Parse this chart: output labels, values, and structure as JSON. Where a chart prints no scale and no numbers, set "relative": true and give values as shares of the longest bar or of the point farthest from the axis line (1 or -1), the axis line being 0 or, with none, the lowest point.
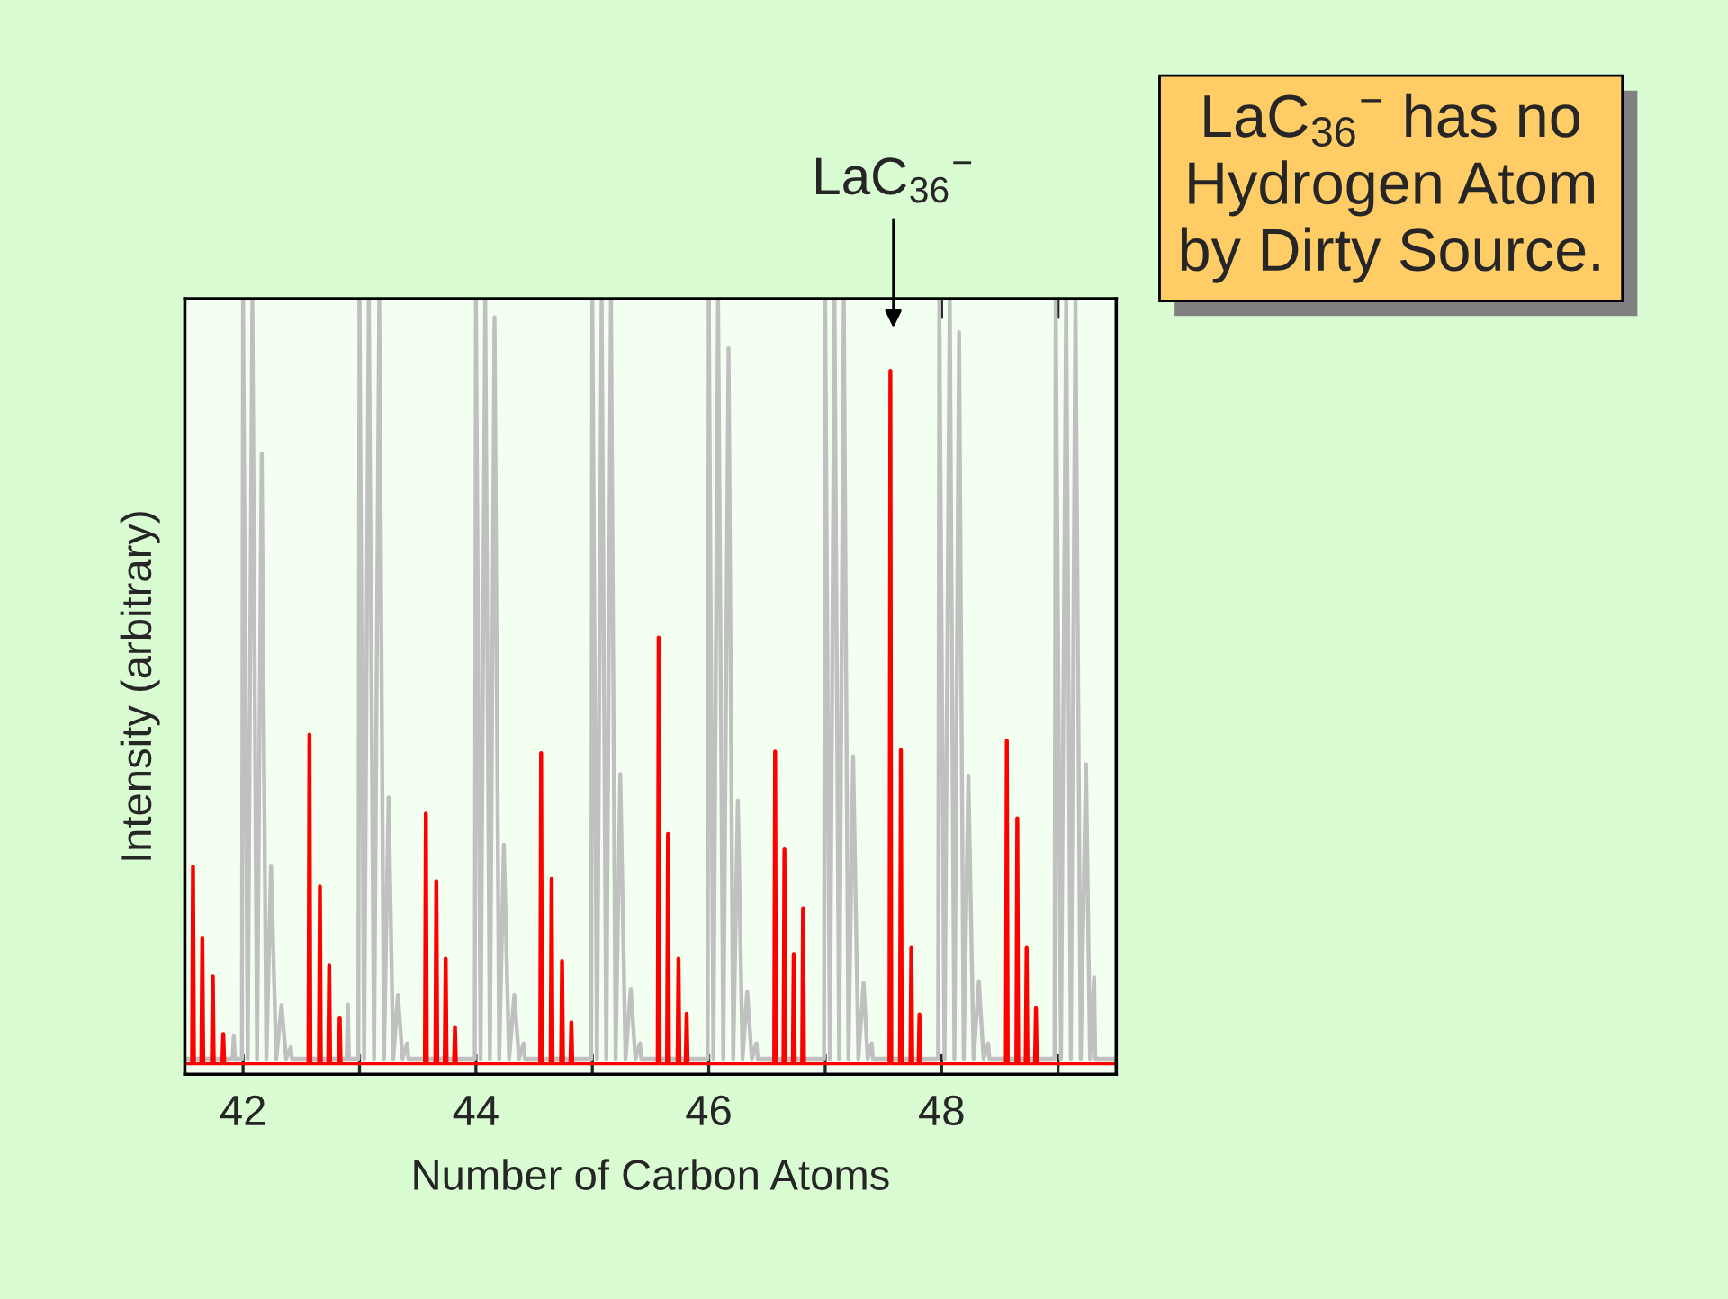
{
  "chart_data": {
    "type": "line",
    "relative": true,
    "xlabel": "Number of Carbon Atoms",
    "ylabel": "Intensity (arbitrary)",
    "xlim": [
      41.5,
      49.5
    ],
    "xticks": [
      42,
      {
        "value": 43,
        "label": null
      },
      44,
      {
        "value": 45,
        "label": null
      },
      46,
      {
        "value": 47,
        "label": null
      },
      48,
      {
        "value": 49,
        "label": null
      }
    ],
    "tick_labels": "x",
    "annotations": [
      "LaC$_{36}$$^{−}$",
      "LaC$_{36}$$^{−}$ has no\nHydrogen Atom\nby Dirty Source."
    ],
    "series": [
      {
        "color": "#c0c0c0",
        "x": [
          41.5,
          41.91,
          41.92,
          41.93,
          41.99,
          42.0,
          42.04,
          42.08,
          42.12,
          42.16,
          42.2,
          42.24,
          42.285,
          42.33,
          42.37,
          42.41,
          42.42,
          42.89,
          42.9,
          42.91,
          42.99,
          43.0,
          43.04,
          43.08,
          43.125,
          43.17,
          43.21,
          43.25,
          43.29,
          43.33,
          43.37,
          43.41,
          43.42,
          43.99,
          44.0,
          44.04,
          44.08,
          44.12,
          44.16,
          44.2,
          44.24,
          44.285,
          44.33,
          44.37,
          44.41,
          44.42,
          44.99,
          45.0,
          45.04,
          45.08,
          45.12,
          45.16,
          45.2,
          45.24,
          45.285,
          45.33,
          45.37,
          45.41,
          45.42,
          45.99,
          46.0,
          46.04,
          46.08,
          46.125,
          46.17,
          46.21,
          46.25,
          46.29,
          46.33,
          46.37,
          46.41,
          46.42,
          46.99,
          47.0,
          47.04,
          47.08,
          47.12,
          47.16,
          47.2,
          47.24,
          47.285,
          47.33,
          47.365,
          47.4,
          47.41,
          47.97,
          47.98,
          48.025,
          48.07,
          48.11,
          48.15,
          48.19,
          48.23,
          48.275,
          48.32,
          48.36,
          48.4,
          48.41,
          48.97,
          48.98,
          49.025,
          49.07,
          49.11,
          49.15,
          49.195,
          49.24,
          49.275,
          49.31,
          49.32,
          49.5
        ],
        "values": [
          0.02,
          0.02,
          0.05,
          0.02,
          0.02,
          1,
          0.02,
          1,
          0.02,
          0.8,
          0.02,
          0.269,
          0.02,
          0.089,
          0.02,
          0.035,
          0.02,
          0.02,
          0.09,
          0.02,
          0.02,
          1,
          0.02,
          1,
          0.02,
          1,
          0.02,
          0.357,
          0.02,
          0.102,
          0.02,
          0.04,
          0.02,
          0.02,
          1,
          0.02,
          1,
          0.02,
          0.976,
          0.02,
          0.296,
          0.02,
          0.102,
          0.02,
          0.04,
          0.02,
          0.02,
          1,
          0.02,
          1,
          0.02,
          1,
          0.02,
          0.387,
          0.02,
          0.11,
          0.02,
          0.04,
          0.02,
          0.02,
          1,
          0.02,
          1,
          0.02,
          0.936,
          0.02,
          0.353,
          0.02,
          0.107,
          0.02,
          0.04,
          0.02,
          0.02,
          1,
          0.02,
          1,
          0.02,
          1,
          0.02,
          0.41,
          0.02,
          0.118,
          0.02,
          0.04,
          0.02,
          0.02,
          1,
          0.02,
          1,
          0.02,
          0.957,
          0.02,
          0.385,
          0.02,
          0.12,
          0.02,
          0.04,
          0.02,
          0.02,
          1,
          0.02,
          1,
          0.02,
          1,
          0.02,
          0.4,
          0.02,
          0.125,
          0.02,
          0.02
        ]
      },
      {
        "color": "#ff0000",
        "x": [
          41.5,
          41.562,
          41.57,
          41.578,
          41.642,
          41.65,
          41.658,
          41.732,
          41.74,
          41.748,
          41.822,
          41.83,
          41.838,
          42.562,
          42.57,
          42.578,
          42.652,
          42.66,
          42.668,
          42.732,
          42.74,
          42.748,
          42.822,
          42.83,
          42.838,
          43.562,
          43.57,
          43.578,
          43.652,
          43.66,
          43.668,
          43.732,
          43.74,
          43.748,
          43.812,
          43.82,
          43.828,
          44.552,
          44.56,
          44.568,
          44.642,
          44.65,
          44.658,
          44.732,
          44.74,
          44.748,
          44.812,
          44.82,
          44.828,
          45.562,
          45.57,
          45.578,
          45.642,
          45.65,
          45.658,
          45.732,
          45.74,
          45.748,
          45.802,
          45.81,
          45.818,
          46.562,
          46.57,
          46.578,
          46.642,
          46.65,
          46.658,
          46.722,
          46.73,
          46.738,
          46.802,
          46.81,
          46.818,
          47.552,
          47.56,
          47.568,
          47.642,
          47.65,
          47.658,
          47.732,
          47.74,
          47.748,
          47.802,
          47.81,
          47.818,
          48.552,
          48.56,
          48.568,
          48.642,
          48.65,
          48.658,
          48.722,
          48.73,
          48.738,
          48.802,
          48.81,
          48.818,
          49.5
        ],
        "values": [
          0.014,
          0.014,
          0.268,
          0.014,
          0.014,
          0.175,
          0.014,
          0.014,
          0.126,
          0.014,
          0.014,
          0.052,
          0.014,
          0.014,
          0.438,
          0.014,
          0.014,
          0.242,
          0.014,
          0.014,
          0.14,
          0.014,
          0.014,
          0.073,
          0.014,
          0.014,
          0.336,
          0.014,
          0.014,
          0.249,
          0.014,
          0.014,
          0.149,
          0.014,
          0.014,
          0.061,
          0.014,
          0.014,
          0.414,
          0.014,
          0.014,
          0.252,
          0.014,
          0.014,
          0.146,
          0.014,
          0.014,
          0.067,
          0.014,
          0.014,
          0.563,
          0.014,
          0.014,
          0.31,
          0.014,
          0.014,
          0.149,
          0.014,
          0.014,
          0.078,
          0.014,
          0.014,
          0.416,
          0.014,
          0.014,
          0.29,
          0.014,
          0.014,
          0.155,
          0.014,
          0.014,
          0.214,
          0.014,
          0.014,
          0.907,
          0.014,
          0.014,
          0.418,
          0.014,
          0.014,
          0.163,
          0.014,
          0.014,
          0.077,
          0.014,
          0.014,
          0.43,
          0.014,
          0.014,
          0.33,
          0.014,
          0.014,
          0.163,
          0.014,
          0.014,
          0.086,
          0.014,
          0.014
        ]
      }
    ]
  }
}
